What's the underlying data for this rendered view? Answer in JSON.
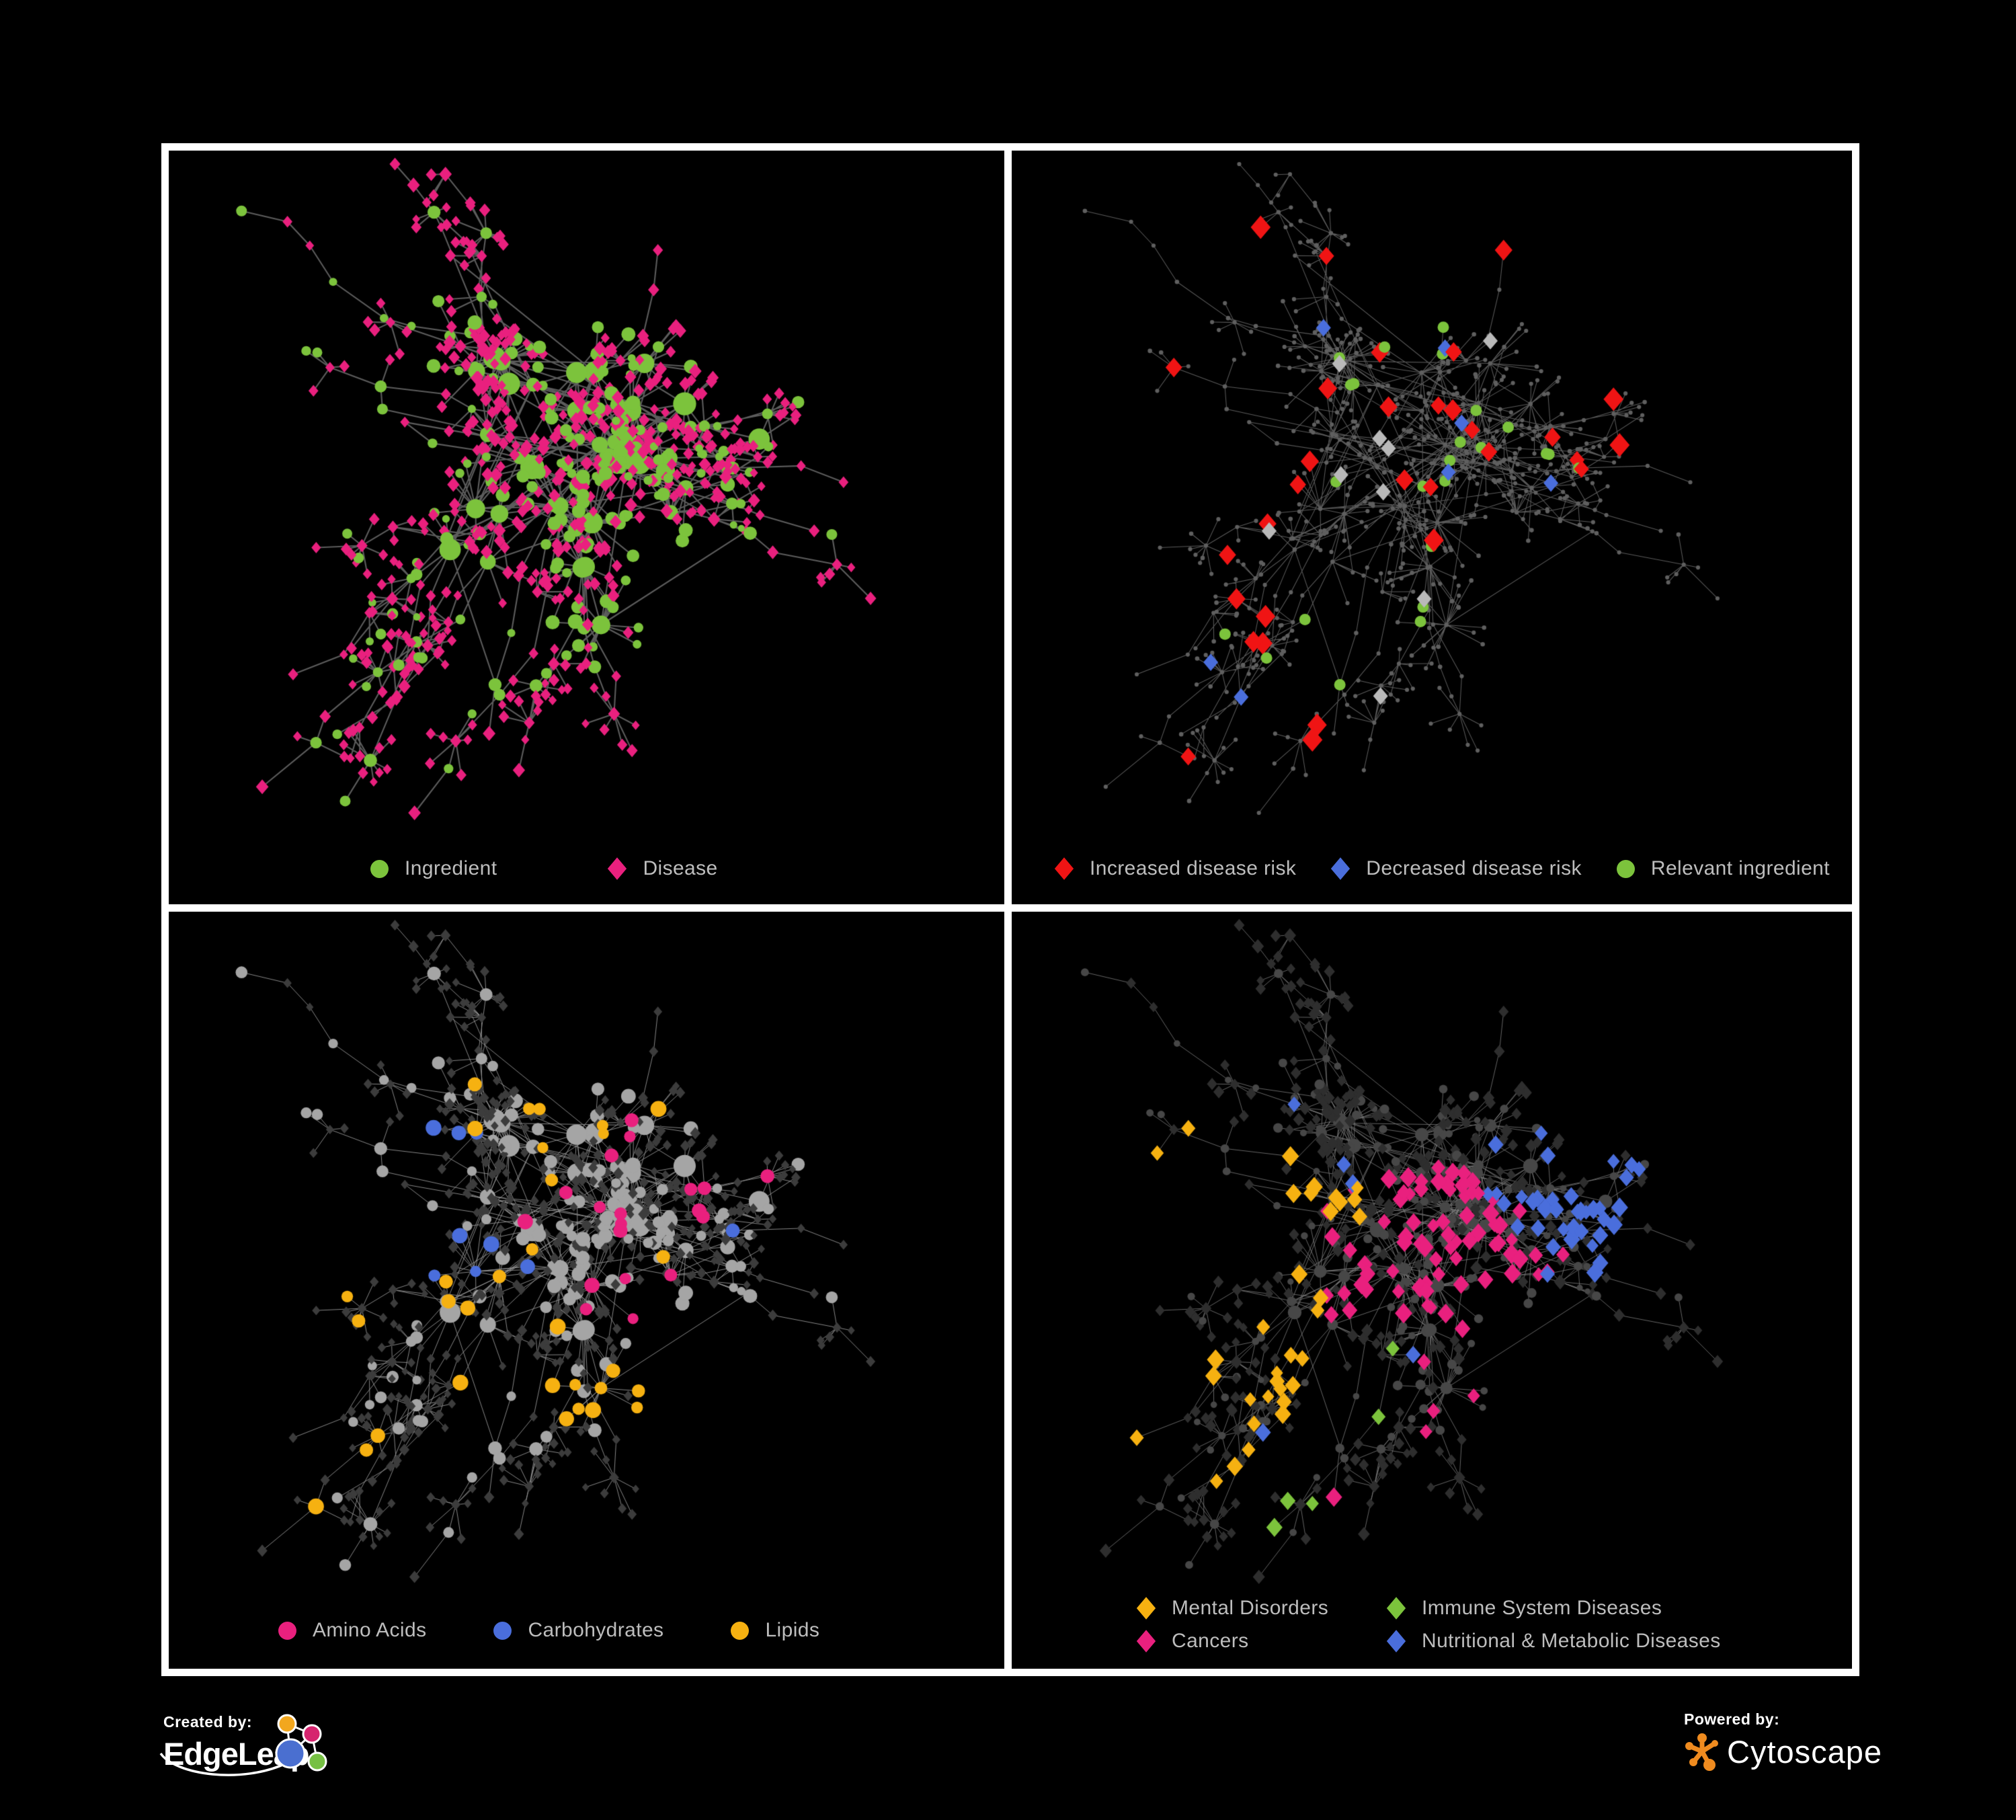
{
  "panels": [
    {
      "name": "ingredient-disease-network",
      "legend": [
        {
          "label": "Ingredient",
          "shape": "circle",
          "color": "#7CC33C"
        },
        {
          "label": "Disease",
          "shape": "diamond",
          "color": "#E9207E"
        }
      ]
    },
    {
      "name": "disease-risk-network",
      "legend": [
        {
          "label": "Increased disease risk",
          "shape": "diamond",
          "color": "#F01414"
        },
        {
          "label": "Decreased disease risk",
          "shape": "diamond",
          "color": "#4A6EDC"
        },
        {
          "label": "Relevant ingredient",
          "shape": "circle",
          "color": "#7CC33C"
        }
      ]
    },
    {
      "name": "nutrient-class-network",
      "legend": [
        {
          "label": "Amino Acids",
          "shape": "circle",
          "color": "#E9207E"
        },
        {
          "label": "Carbohydrates",
          "shape": "circle",
          "color": "#4A6EDC"
        },
        {
          "label": "Lipids",
          "shape": "circle",
          "color": "#F6B111"
        }
      ]
    },
    {
      "name": "disease-category-network",
      "legend": [
        {
          "label": "Mental Disorders",
          "shape": "diamond",
          "color": "#F6B111"
        },
        {
          "label": "Immune System Diseases",
          "shape": "diamond",
          "color": "#7CC33C"
        },
        {
          "label": "Cancers",
          "shape": "diamond",
          "color": "#E9207E"
        },
        {
          "label": "Nutritional & Metabolic Diseases",
          "shape": "diamond",
          "color": "#4A6EDC"
        }
      ]
    }
  ],
  "network_style": {
    "edge_colors": {
      "p1": "#696969",
      "p2": "#676767",
      "p3": "#989898",
      "p4": "#7F7F7F"
    },
    "node_colors": {
      "ingredient_green": "#7CC33C",
      "disease_pink": "#E9207E",
      "risk_red": "#F01414",
      "risk_blue": "#4A6EDC",
      "risk_gray": "#B9B9B9",
      "lipid_orange": "#F6B111",
      "muted_dot": "#5F5F5F",
      "muted_circle_light": "#A5A5A5",
      "muted_diamond_dark": "#3C3C3C",
      "muted_circle_dark": "#474747",
      "muted_diamond_darker": "#2E2E2E"
    }
  },
  "footer": {
    "created_by": "Created by:",
    "brand": "EdgeLeap",
    "powered_by": "Powered by:",
    "engine": "Cytoscape",
    "brand_colors": {
      "logo_orange": "#F2A71E",
      "logo_magenta": "#D6246E",
      "logo_blue": "#4A6FD0",
      "logo_green": "#76C043",
      "cytoscape_orange": "#EF8B1F"
    }
  }
}
